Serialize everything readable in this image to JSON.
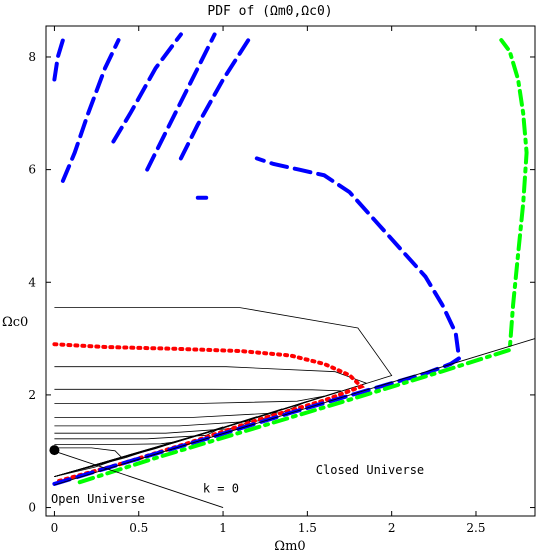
{
  "chart_data": {
    "type": "line",
    "title": "PDF of (Ωm0,Ωc0)",
    "xlabel": "Ωm0",
    "ylabel": "Ωc0",
    "xlim": [
      -0.05,
      2.85
    ],
    "ylim": [
      -0.15,
      8.55
    ],
    "x_ticks": [
      0,
      0.5,
      1,
      1.5,
      2,
      2.5
    ],
    "x_tick_labels": [
      "0",
      "0.5",
      "1",
      "1.5",
      "2",
      "2.5"
    ],
    "y_ticks": [
      0,
      2,
      4,
      6,
      8
    ],
    "y_tick_labels": [
      "0",
      "2",
      "4",
      "6",
      "8"
    ],
    "grid": false,
    "annotations": [
      {
        "text": "k = 0",
        "x": 0.88,
        "y": 0.27
      },
      {
        "text": "Closed Universe",
        "x": 1.55,
        "y": 0.6
      },
      {
        "text": "Open Universe",
        "x": -0.02,
        "y": 0.08
      }
    ],
    "best_fit_point": {
      "x": 0.0,
      "y": 1.02
    },
    "reference_lines": [
      {
        "label": "k = 0",
        "x": [
          0.0,
          1.0
        ],
        "y": [
          1.0,
          0.0
        ],
        "color": "#000000"
      },
      {
        "label": "boundary",
        "x": [
          0.0,
          2.85
        ],
        "y": [
          0.4,
          3.0
        ],
        "color": "#000000"
      }
    ],
    "series": [
      {
        "style": "dotted",
        "color": "#ff0000",
        "x": [
          0.0,
          0.3,
          0.7,
          1.1,
          1.4,
          1.6,
          1.75,
          1.82,
          1.6,
          1.2,
          0.8,
          0.4,
          0.0
        ],
        "y": [
          2.9,
          2.85,
          2.82,
          2.78,
          2.7,
          2.55,
          2.35,
          2.15,
          1.9,
          1.55,
          1.15,
          0.78,
          0.45
        ]
      },
      {
        "style": "dashed",
        "color": "#0000ff",
        "x": [
          0.0,
          0.4,
          0.9,
          1.4,
          1.9,
          2.2,
          2.35,
          2.4,
          2.38,
          2.3,
          2.2,
          2.05,
          1.9,
          1.75,
          1.6,
          1.45,
          1.3,
          1.2
        ],
        "y": [
          0.42,
          0.78,
          1.22,
          1.68,
          2.12,
          2.38,
          2.55,
          2.65,
          3.1,
          3.6,
          4.1,
          4.6,
          5.1,
          5.6,
          5.9,
          6.0,
          6.1,
          6.2
        ]
      },
      {
        "style": "dashdot",
        "color": "#00ff00",
        "x": [
          0.15,
          0.6,
          1.2,
          1.8,
          2.3,
          2.7,
          2.72,
          2.75,
          2.78,
          2.8,
          2.78,
          2.75,
          2.7,
          2.65
        ],
        "y": [
          0.45,
          0.88,
          1.42,
          1.96,
          2.42,
          2.8,
          3.6,
          4.5,
          5.4,
          6.3,
          7.0,
          7.6,
          8.1,
          8.3
        ]
      }
    ],
    "blue_dashed_fragments": [
      {
        "x": [
          0.0,
          0.02,
          0.05
        ],
        "y": [
          7.6,
          8.0,
          8.3
        ]
      },
      {
        "x": [
          0.05,
          0.12,
          0.2,
          0.3,
          0.38
        ],
        "y": [
          5.8,
          6.3,
          7.0,
          7.8,
          8.3
        ]
      },
      {
        "x": [
          0.35,
          0.45,
          0.6,
          0.75
        ],
        "y": [
          6.5,
          7.0,
          7.8,
          8.4
        ]
      },
      {
        "x": [
          0.55,
          0.65,
          0.8,
          0.95
        ],
        "y": [
          6.0,
          6.6,
          7.5,
          8.4
        ]
      },
      {
        "x": [
          0.75,
          0.85,
          1.0,
          1.15
        ],
        "y": [
          6.2,
          6.8,
          7.6,
          8.3
        ]
      },
      {
        "x": [
          0.85,
          0.9
        ],
        "y": [
          5.5,
          5.5
        ]
      }
    ],
    "contour_levels": [
      {
        "cap": 3.55,
        "tip_x": 2.0
      },
      {
        "cap": 2.5,
        "tip_x": 1.85
      },
      {
        "cap": 2.1,
        "tip_x": 1.7
      },
      {
        "cap": 1.85,
        "tip_x": 1.6
      },
      {
        "cap": 1.6,
        "tip_x": 1.5
      },
      {
        "cap": 1.45,
        "tip_x": 1.35
      },
      {
        "cap": 1.32,
        "tip_x": 1.2
      },
      {
        "cap": 1.22,
        "tip_x": 1.0
      },
      {
        "cap": 1.12,
        "tip_x": 0.7
      },
      {
        "cap": 1.06,
        "tip_x": 0.4
      }
    ]
  }
}
